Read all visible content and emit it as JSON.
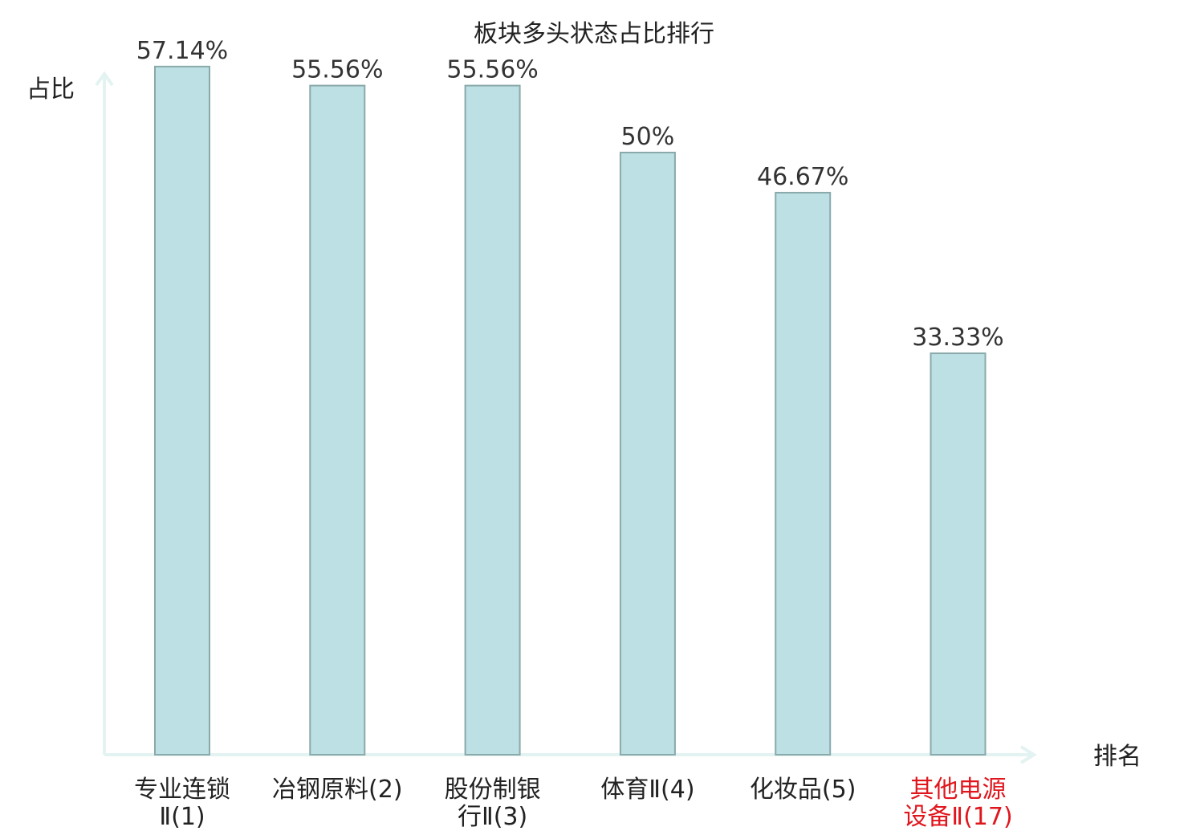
{
  "chart_data": {
    "type": "bar",
    "title": "板块多头状态占比排行",
    "ylabel": "占比",
    "xlabel": "排名",
    "categories": [
      [
        "专业连锁",
        "Ⅱ(1)"
      ],
      [
        "冶钢原料(2)"
      ],
      [
        "股份制银",
        "行Ⅱ(3)"
      ],
      [
        "体育Ⅱ(4)"
      ],
      [
        "化妆品(5)"
      ],
      [
        "其他电源",
        "设备Ⅱ(17)"
      ]
    ],
    "values": [
      57.14,
      55.56,
      55.56,
      50,
      46.67,
      33.33
    ],
    "value_labels": [
      "57.14%",
      "55.56%",
      "55.56%",
      "50%",
      "46.67%",
      "33.33%"
    ],
    "ylim": [
      0,
      60
    ],
    "highlight_index": 5,
    "grid": false,
    "colors": {
      "bar_fill": "#bce0e3",
      "bar_stroke": "#8aa9ab",
      "axis": "#e3f3f1",
      "label": "#222222",
      "highlight": "#e0161d"
    }
  }
}
